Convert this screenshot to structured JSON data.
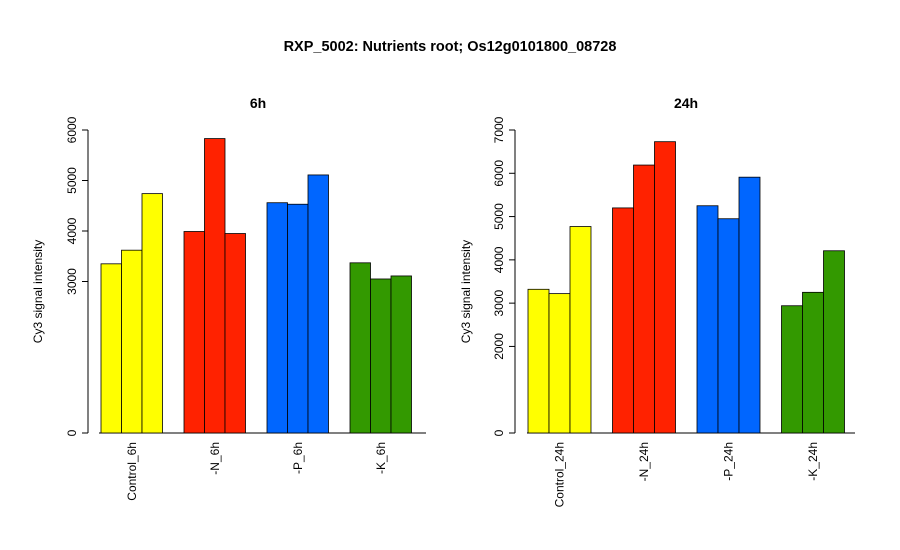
{
  "title": "RXP_5002: Nutrients root; Os12g0101800_08728",
  "colors": {
    "Control": "#ffff00",
    "-N": "#ff2200",
    "-P": "#0066ff",
    "-K": "#339900"
  },
  "chart_data": [
    {
      "type": "bar",
      "title": "6h",
      "ylabel": "Cy3 signal intensity",
      "ylim": [
        0,
        6000
      ],
      "yticks": [
        0,
        3000,
        4000,
        5000,
        6000
      ],
      "groups": [
        {
          "label": "Control_6h",
          "color": "#ffff00",
          "values": [
            3350,
            3620,
            4740
          ]
        },
        {
          "label": "-N_6h",
          "color": "#ff2200",
          "values": [
            3990,
            5830,
            3950
          ]
        },
        {
          "label": "-P_6h",
          "color": "#0066ff",
          "values": [
            4560,
            4530,
            5110
          ]
        },
        {
          "label": "-K_6h",
          "color": "#339900",
          "values": [
            3370,
            3050,
            3110
          ]
        }
      ]
    },
    {
      "type": "bar",
      "title": "24h",
      "ylabel": "Cy3 signal intensity",
      "ylim": [
        0,
        7000
      ],
      "yticks": [
        0,
        2000,
        3000,
        4000,
        5000,
        6000,
        7000
      ],
      "groups": [
        {
          "label": "Control_24h",
          "color": "#ffff00",
          "values": [
            3320,
            3220,
            4770
          ]
        },
        {
          "label": "-N_24h",
          "color": "#ff2200",
          "values": [
            5200,
            6190,
            6730
          ]
        },
        {
          "label": "-P_24h",
          "color": "#0066ff",
          "values": [
            5250,
            4950,
            5910
          ]
        },
        {
          "label": "-K_24h",
          "color": "#339900",
          "values": [
            2940,
            3250,
            4210
          ]
        }
      ]
    }
  ]
}
